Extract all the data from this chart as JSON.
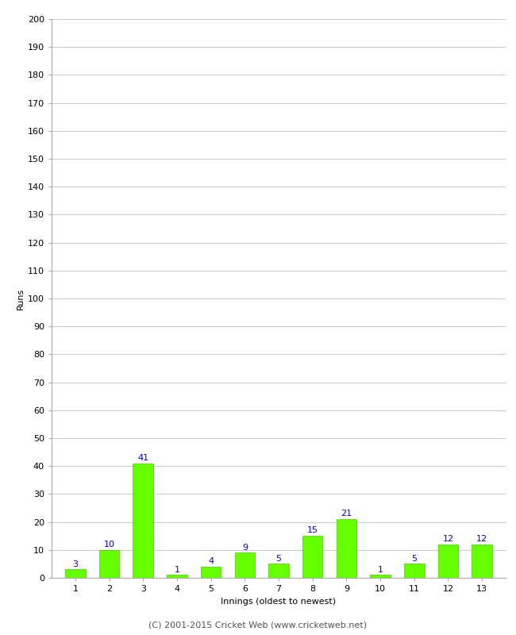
{
  "categories": [
    1,
    2,
    3,
    4,
    5,
    6,
    7,
    8,
    9,
    10,
    11,
    12,
    13
  ],
  "values": [
    3,
    10,
    41,
    1,
    4,
    9,
    5,
    15,
    21,
    1,
    5,
    12,
    12
  ],
  "bar_color": "#66ff00",
  "bar_edge_color": "#44cc00",
  "label_color": "#0000cc",
  "xlabel": "Innings (oldest to newest)",
  "ylabel": "Runs",
  "ylim": [
    0,
    200
  ],
  "yticks": [
    0,
    10,
    20,
    30,
    40,
    50,
    60,
    70,
    80,
    90,
    100,
    110,
    120,
    130,
    140,
    150,
    160,
    170,
    180,
    190,
    200
  ],
  "footer": "(C) 2001-2015 Cricket Web (www.cricketweb.net)",
  "background_color": "#ffffff",
  "grid_color": "#cccccc"
}
